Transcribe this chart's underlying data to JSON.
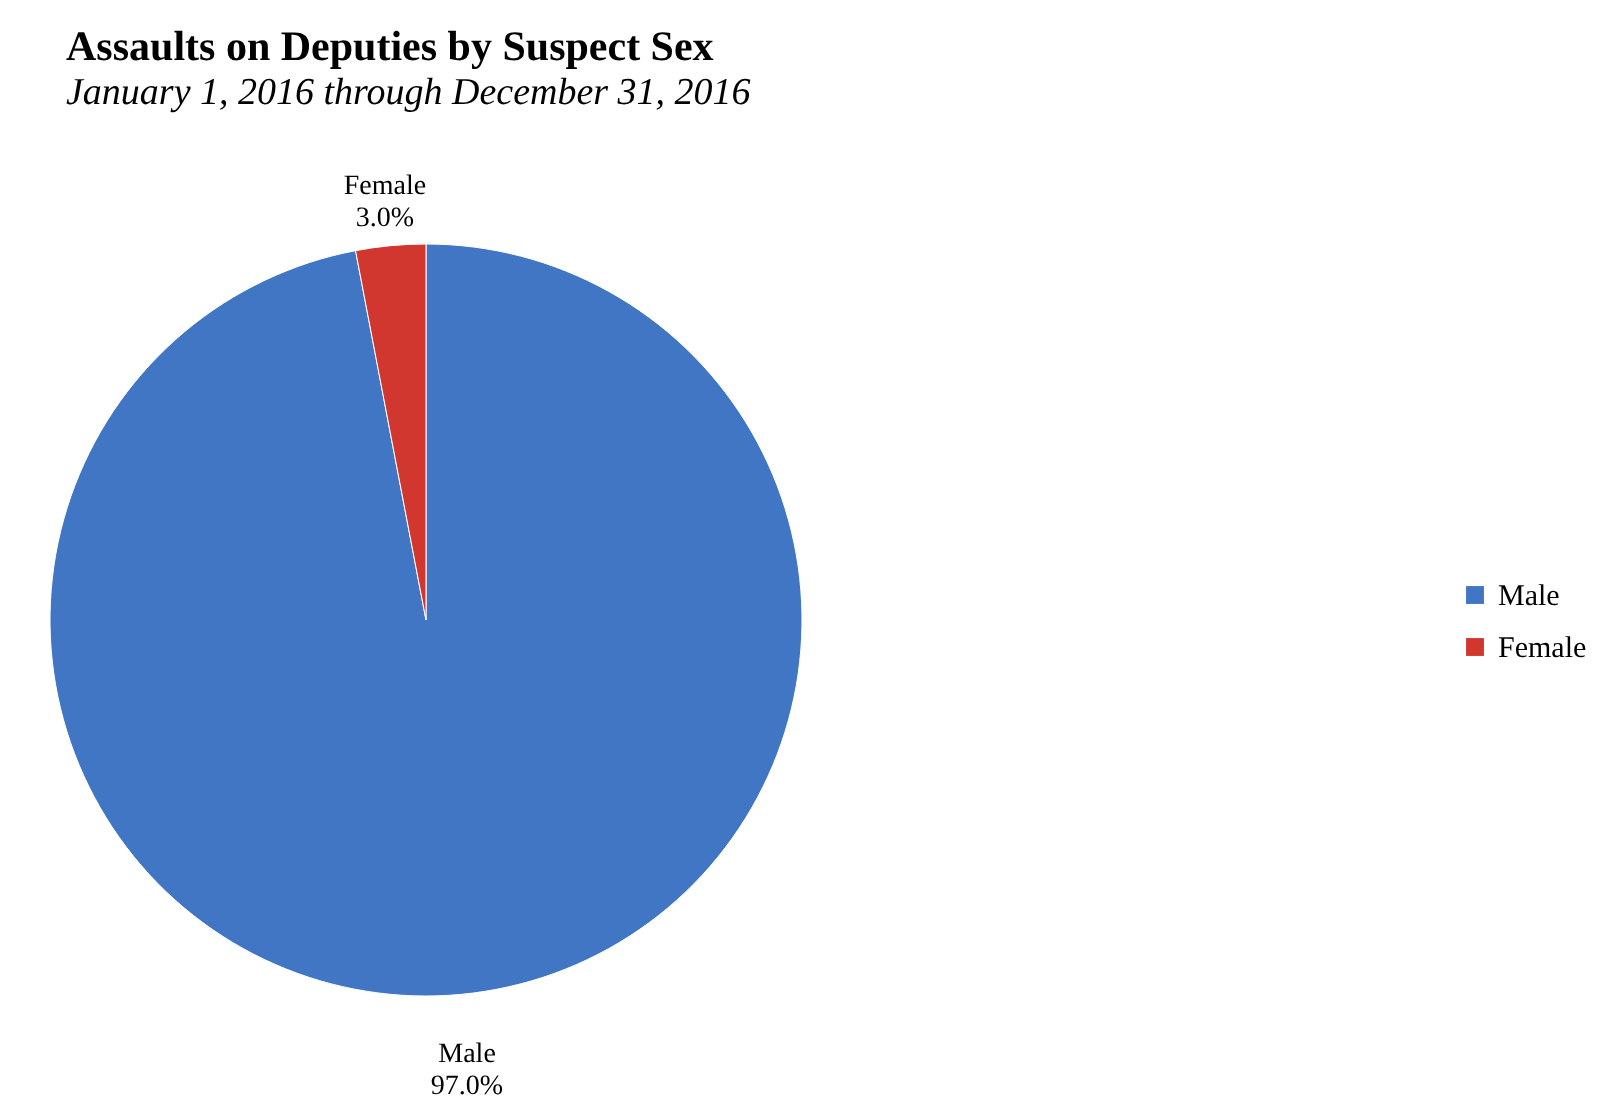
{
  "chart_data": {
    "type": "pie",
    "title": "Assaults on Deputies by Suspect Sex",
    "subtitle": "January 1, 2016 through December 31, 2016",
    "categories": [
      "Male",
      "Female"
    ],
    "values": [
      97.0,
      3.0
    ],
    "colors": [
      "#4076c4",
      "#d1372f"
    ],
    "value_labels": [
      "97.0%",
      "3.0%"
    ],
    "legend": "right"
  }
}
